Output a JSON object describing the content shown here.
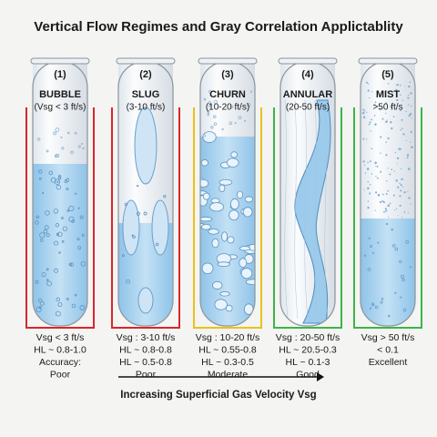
{
  "title": "Vertical Flow Regimes and Gray Correlation Applictablity",
  "tubes": [
    {
      "number": "(1)",
      "name": "BUBBLE",
      "range": "(Vsg < 3 ft/s)",
      "bracket_color": "#d8262b",
      "lines": [
        "Vsg < 3 ft/s",
        "HL ~ 0.8-1.0",
        "Accuracy:",
        "Poor"
      ]
    },
    {
      "number": "(2)",
      "name": "SLUG",
      "range": "(3-10 ft/s)",
      "bracket_color": "#d8262b",
      "lines": [
        "Vsg : 3-10 ft/s",
        "HL ~ 0.8-0.8",
        "HL ~ 0.5-0.8",
        "Poor"
      ]
    },
    {
      "number": "(3)",
      "name": "CHURN",
      "range": "(10-20 ft/s)",
      "bracket_color": "#e8c21a",
      "lines": [
        "Vsg : 10-20 ft/s",
        "HL ~ 0.55-0.8",
        "HL ~ 0.3-0.5",
        "Moderate"
      ]
    },
    {
      "number": "(4)",
      "name": "ANNULAR",
      "range": "(20-50 ft/s)",
      "bracket_color": "#3bb54a",
      "lines": [
        "Vsg : 20-50 ft/s",
        "HL ~ 20.5-0.3",
        "HL ~ 0.1-3",
        "Good"
      ]
    },
    {
      "number": "(5)",
      "name": "MIST",
      "range": ">50 ft/s",
      "bracket_color": "#3bb54a",
      "lines": [
        "Vsg > 50 ft/s",
        "< 0.1",
        "Excellent"
      ]
    }
  ],
  "arrow_label": "Increasing Superficial Gas Velocity Vsg"
}
